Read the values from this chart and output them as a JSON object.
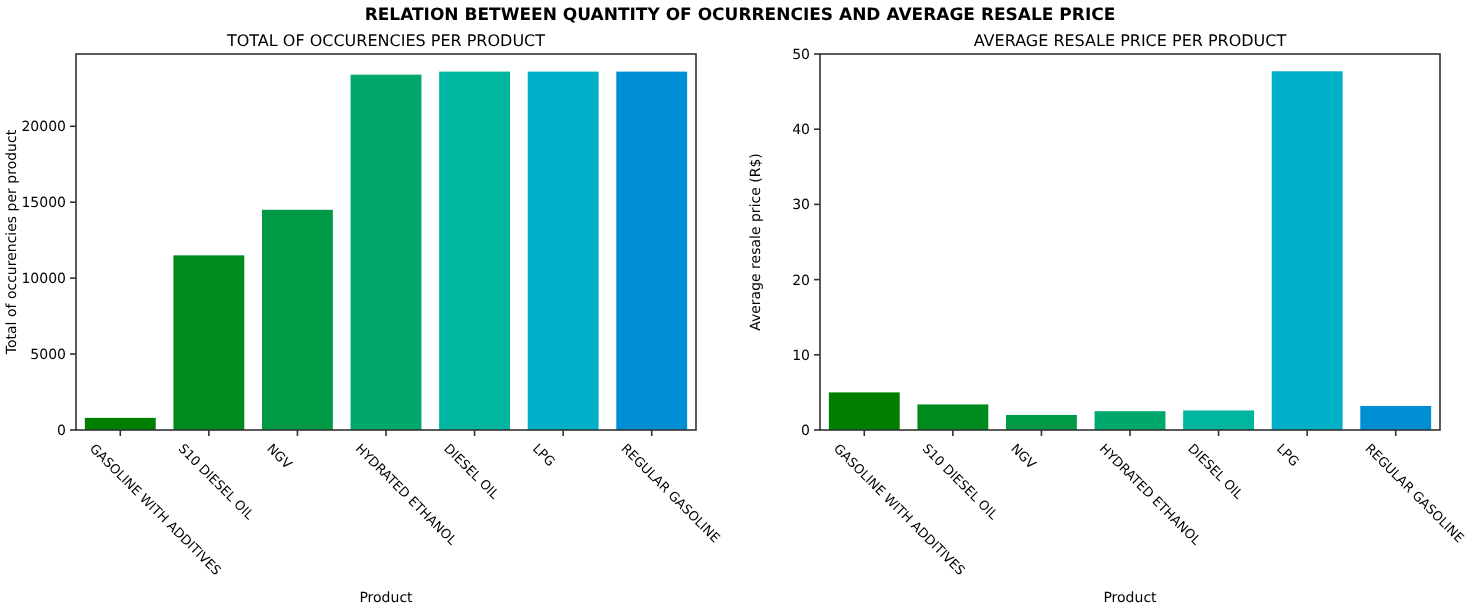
{
  "chart_data": [
    {
      "type": "other",
      "title": "RELATION BETWEEN QUANTITY OF OCURRENCIES AND AVERAGE RESALE PRICE"
    },
    {
      "type": "bar",
      "title": "TOTAL OF OCCURENCIES PER PRODUCT",
      "xlabel": "Product",
      "ylabel": "Total of occurencies per product",
      "categories": [
        "GASOLINE WITH ADDITIVES",
        "S10 DIESEL OIL",
        "NGV",
        "HYDRATED ETHANOL",
        "DIESEL OIL",
        "LPG",
        "REGULAR GASOLINE"
      ],
      "values": [
        800,
        11500,
        14500,
        23400,
        23600,
        23600,
        23600
      ],
      "colors": [
        "#007f00",
        "#008b1f",
        "#009945",
        "#00a86b",
        "#00b6a0",
        "#00afc8",
        "#008fd5"
      ],
      "ylim": [
        0,
        24760
      ],
      "yticks": [
        0,
        5000,
        10000,
        15000,
        20000
      ]
    },
    {
      "type": "bar",
      "title": "AVERAGE RESALE PRICE PER PRODUCT",
      "xlabel": "Product",
      "ylabel": "Average resale price (R$)",
      "categories": [
        "GASOLINE WITH ADDITIVES",
        "S10 DIESEL OIL",
        "NGV",
        "HYDRATED ETHANOL",
        "DIESEL OIL",
        "LPG",
        "REGULAR GASOLINE"
      ],
      "values": [
        5.0,
        3.4,
        2.0,
        2.5,
        2.6,
        47.7,
        3.2
      ],
      "colors": [
        "#007f00",
        "#008b1f",
        "#009945",
        "#00a86b",
        "#00b6a0",
        "#00afc8",
        "#008fd5"
      ],
      "ylim": [
        0,
        50
      ],
      "yticks": [
        0,
        10,
        20,
        30,
        40,
        50
      ]
    }
  ]
}
